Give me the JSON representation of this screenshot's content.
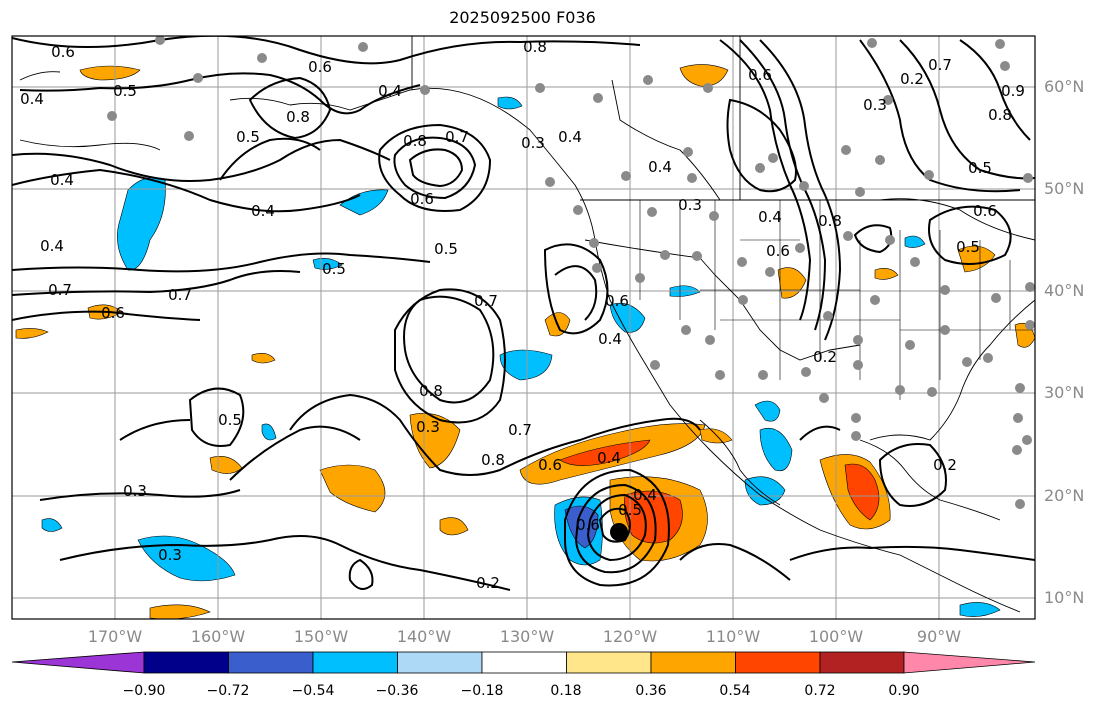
{
  "title": "2025092500 F036",
  "lat_labels": [
    "60°N",
    "50°N",
    "40°N",
    "30°N",
    "20°N",
    "10°N"
  ],
  "lon_labels": [
    "170°W",
    "160°W",
    "150°W",
    "140°W",
    "130°W",
    "120°W",
    "110°W",
    "100°W",
    "90°W"
  ],
  "colorbar": {
    "ticks": [
      "−0.90",
      "−0.72",
      "−0.54",
      "−0.36",
      "−0.18",
      "0.18",
      "0.36",
      "0.54",
      "0.72",
      "0.90"
    ],
    "colors": [
      "#9b35d6",
      "#00008b",
      "#3a5fcd",
      "#00bfff",
      "#add8f6",
      "#ffffff",
      "#ffe68a",
      "#ffa500",
      "#ff4500",
      "#b22222",
      "#ff88aa"
    ]
  },
  "contour_labels": [
    "0.6",
    "0.4",
    "0.5",
    "0.6",
    "0.8",
    "0.4",
    "0.4",
    "0.5",
    "0.7",
    "0.8",
    "0.4",
    "0.6",
    "0.4",
    "0.7",
    "0.6",
    "0.3",
    "0.8",
    "0.4",
    "0.5",
    "0.7",
    "0.7",
    "0.6",
    "0.5",
    "0.8",
    "0.5",
    "0.7",
    "0.8",
    "0.6",
    "0.4",
    "0.2",
    "0.3",
    "0.3",
    "0.4",
    "0.5",
    "0.6",
    "0.4",
    "0.3",
    "0.6",
    "0.7",
    "0.5",
    "0.6",
    "0.5",
    "0.3",
    "0.3",
    "0.2",
    "0.2",
    "0.2",
    "0.9",
    "0.8",
    "0.4",
    "0.6",
    "0.8",
    "0.4"
  ]
}
